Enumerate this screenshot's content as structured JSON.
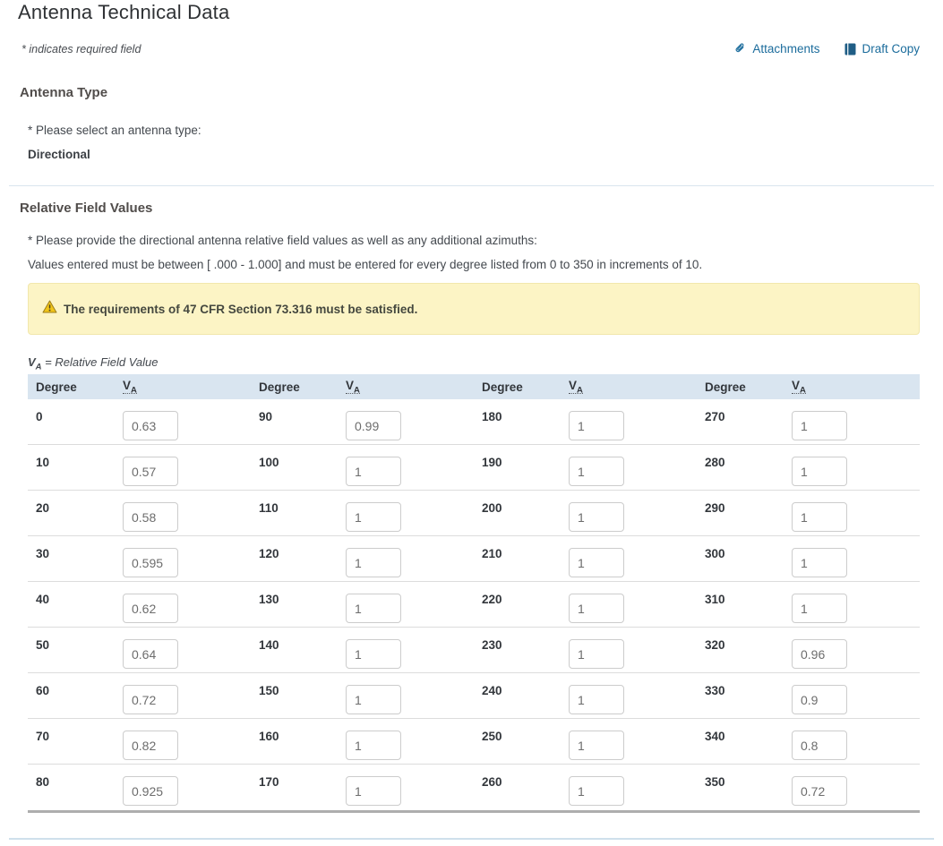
{
  "page": {
    "title": "Antenna Technical Data",
    "required_note": "* indicates required field"
  },
  "toolbar": {
    "attachments_label": "Attachments",
    "draft_copy_label": "Draft Copy",
    "link_color": "#1b6c9c",
    "draft_icon_color": "#1f5d85"
  },
  "antenna_type": {
    "heading": "Antenna Type",
    "prompt": "* Please select an antenna type:",
    "value": "Directional"
  },
  "relative_field": {
    "heading": "Relative Field Values",
    "prompt": "* Please provide the directional antenna relative field values as well as any additional azimuths:",
    "range_note": "Values entered must be between [ .000 - 1.000] and must be entered for every degree listed from 0 to 350 in increments of 10.",
    "warning": {
      "text": "The requirements of 47 CFR Section 73.316 must be satisfied.",
      "background": "#fcf4c5",
      "icon_color": "#f0c419"
    },
    "legend": {
      "v": "V",
      "sub": "A",
      "rest": " = Relative Field Value"
    },
    "table": {
      "header_background": "#d9e5f0",
      "degree_header": "Degree",
      "va_header": "V",
      "va_header_sub": "A",
      "rows": [
        {
          "cells": [
            {
              "degree": "0",
              "value": "0.63"
            },
            {
              "degree": "90",
              "value": "0.99"
            },
            {
              "degree": "180",
              "value": "1"
            },
            {
              "degree": "270",
              "value": "1"
            }
          ]
        },
        {
          "cells": [
            {
              "degree": "10",
              "value": "0.57"
            },
            {
              "degree": "100",
              "value": "1"
            },
            {
              "degree": "190",
              "value": "1"
            },
            {
              "degree": "280",
              "value": "1"
            }
          ]
        },
        {
          "cells": [
            {
              "degree": "20",
              "value": "0.58"
            },
            {
              "degree": "110",
              "value": "1"
            },
            {
              "degree": "200",
              "value": "1"
            },
            {
              "degree": "290",
              "value": "1"
            }
          ]
        },
        {
          "cells": [
            {
              "degree": "30",
              "value": "0.595"
            },
            {
              "degree": "120",
              "value": "1"
            },
            {
              "degree": "210",
              "value": "1"
            },
            {
              "degree": "300",
              "value": "1"
            }
          ]
        },
        {
          "cells": [
            {
              "degree": "40",
              "value": "0.62"
            },
            {
              "degree": "130",
              "value": "1"
            },
            {
              "degree": "220",
              "value": "1"
            },
            {
              "degree": "310",
              "value": "1"
            }
          ]
        },
        {
          "cells": [
            {
              "degree": "50",
              "value": "0.64"
            },
            {
              "degree": "140",
              "value": "1"
            },
            {
              "degree": "230",
              "value": "1"
            },
            {
              "degree": "320",
              "value": "0.96"
            }
          ]
        },
        {
          "cells": [
            {
              "degree": "60",
              "value": "0.72"
            },
            {
              "degree": "150",
              "value": "1"
            },
            {
              "degree": "240",
              "value": "1"
            },
            {
              "degree": "330",
              "value": "0.9"
            }
          ]
        },
        {
          "cells": [
            {
              "degree": "70",
              "value": "0.82"
            },
            {
              "degree": "160",
              "value": "1"
            },
            {
              "degree": "250",
              "value": "1"
            },
            {
              "degree": "340",
              "value": "0.8"
            }
          ]
        },
        {
          "cells": [
            {
              "degree": "80",
              "value": "0.925"
            },
            {
              "degree": "170",
              "value": "1"
            },
            {
              "degree": "260",
              "value": "1"
            },
            {
              "degree": "350",
              "value": "0.72"
            }
          ]
        }
      ]
    }
  }
}
